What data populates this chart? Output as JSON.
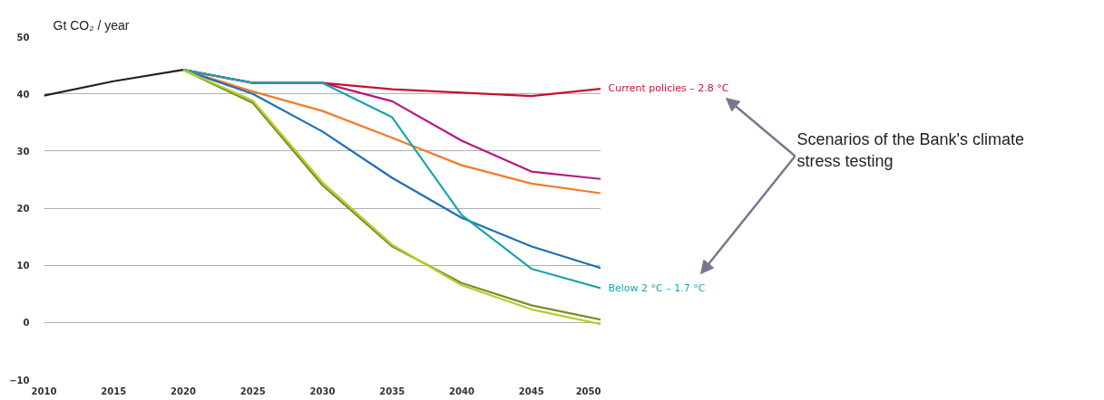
{
  "chart_data": {
    "type": "line",
    "ylabel": "Gt CO₂ / year",
    "xlim": [
      2010,
      2050
    ],
    "xticks": [
      2010,
      2015,
      2020,
      2025,
      2030,
      2035,
      2040,
      2045,
      2050
    ],
    "ylim": [
      -10,
      50
    ],
    "yticks": [
      -10,
      0,
      10,
      20,
      30,
      40,
      50
    ],
    "grid": "y",
    "line_style": "solid",
    "marker": "none",
    "series": [
      {
        "color": "#222222",
        "x": [
          2010,
          2015,
          2020
        ],
        "values": [
          39.7,
          42.2,
          44.2
        ]
      },
      {
        "name": "Current policies – 2.8 °C",
        "color": "#c8102e",
        "x": [
          2020,
          2025,
          2030,
          2035,
          2040,
          2045,
          2050
        ],
        "values": [
          44.2,
          41.9,
          41.9,
          40.8,
          40.2,
          39.6,
          40.9
        ]
      },
      {
        "color": "#b5177f",
        "x": [
          2020,
          2025,
          2030,
          2035,
          2040,
          2045,
          2050
        ],
        "values": [
          44.2,
          41.9,
          41.9,
          38.7,
          31.8,
          26.4,
          25.1
        ]
      },
      {
        "color": "#f47a2a",
        "x": [
          2020,
          2025,
          2030,
          2035,
          2040,
          2045,
          2050
        ],
        "values": [
          44.2,
          40.4,
          37.0,
          32.3,
          27.5,
          24.3,
          22.6
        ]
      },
      {
        "color": "#1f6fb2",
        "x": [
          2020,
          2025,
          2030,
          2035,
          2040,
          2045,
          2050
        ],
        "values": [
          44.2,
          40.0,
          33.4,
          25.3,
          18.3,
          13.3,
          9.5
        ]
      },
      {
        "name": "Below 2 °C – 1.7 °C",
        "color": "#1aa5ac",
        "x": [
          2020,
          2025,
          2030,
          2035,
          2040,
          2045,
          2050
        ],
        "values": [
          44.2,
          41.9,
          41.9,
          35.9,
          18.8,
          9.4,
          6.0
        ]
      },
      {
        "color": "#7f8a2a",
        "x": [
          2020,
          2025,
          2030,
          2035,
          2040,
          2045,
          2050
        ],
        "values": [
          44.2,
          38.4,
          24.0,
          13.3,
          6.9,
          3.0,
          0.5
        ]
      },
      {
        "color": "#b9cc2a",
        "x": [
          2020,
          2025,
          2030,
          2035,
          2040,
          2045,
          2050
        ],
        "values": [
          44.2,
          38.8,
          24.5,
          13.6,
          6.5,
          2.3,
          -0.3
        ]
      }
    ],
    "annotations": [
      "Scenarios of the Bank's climate stress testing"
    ]
  }
}
